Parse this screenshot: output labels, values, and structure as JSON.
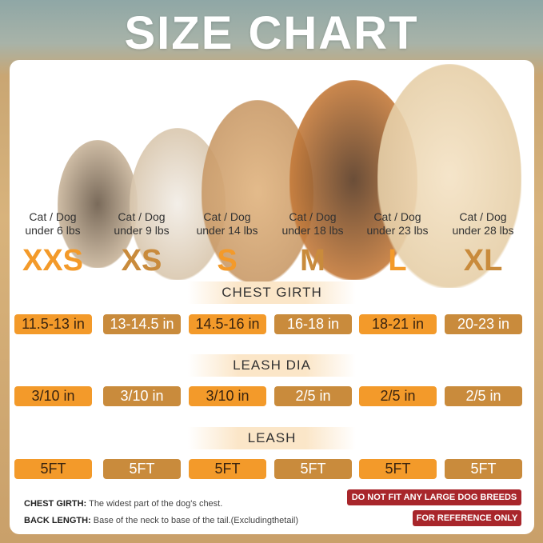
{
  "title": "SIZE CHART",
  "sizes": [
    {
      "weight_line1": "Cat / Dog",
      "weight_line2": "under 6 lbs",
      "size": "XXS",
      "chest": "11.5-13 in",
      "leash_dia": "3/10 in",
      "leash": "5FT",
      "style": "orange"
    },
    {
      "weight_line1": "Cat / Dog",
      "weight_line2": "under 9 lbs",
      "size": "XS",
      "chest": "13-14.5 in",
      "leash_dia": "3/10 in",
      "leash": "5FT",
      "style": "brown"
    },
    {
      "weight_line1": "Cat / Dog",
      "weight_line2": "under 14 lbs",
      "size": "S",
      "chest": "14.5-16 in",
      "leash_dia": "3/10 in",
      "leash": "5FT",
      "style": "orange"
    },
    {
      "weight_line1": "Cat / Dog",
      "weight_line2": "under 18 lbs",
      "size": "M",
      "chest": "16-18 in",
      "leash_dia": "2/5 in",
      "leash": "5FT",
      "style": "brown"
    },
    {
      "weight_line1": "Cat / Dog",
      "weight_line2": "under 23 lbs",
      "size": "L",
      "chest": "18-21 in",
      "leash_dia": "2/5 in",
      "leash": "5FT",
      "style": "orange"
    },
    {
      "weight_line1": "Cat / Dog",
      "weight_line2": "under 28 lbs",
      "size": "XL",
      "chest": "20-23 in",
      "leash_dia": "2/5 in",
      "leash": "5FT",
      "style": "brown"
    }
  ],
  "headers": {
    "chest": "CHEST GIRTH",
    "leash_dia": "LEASH DIA",
    "leash": "LEASH"
  },
  "notes": {
    "chest_label": "CHEST GIRTH:",
    "chest_text": "The widest part of the dog's chest.",
    "back_label": "BACK LENGTH:",
    "back_text": "Base of the neck to base of the tail.(Excludingthetail)"
  },
  "badges": {
    "large": "DO NOT FIT ANY LARGE DOG BREEDS",
    "reference": "FOR REFERENCE ONLY"
  },
  "colors": {
    "orange": "#f39a2a",
    "brown": "#c98b3c",
    "red": "#a8262b"
  }
}
